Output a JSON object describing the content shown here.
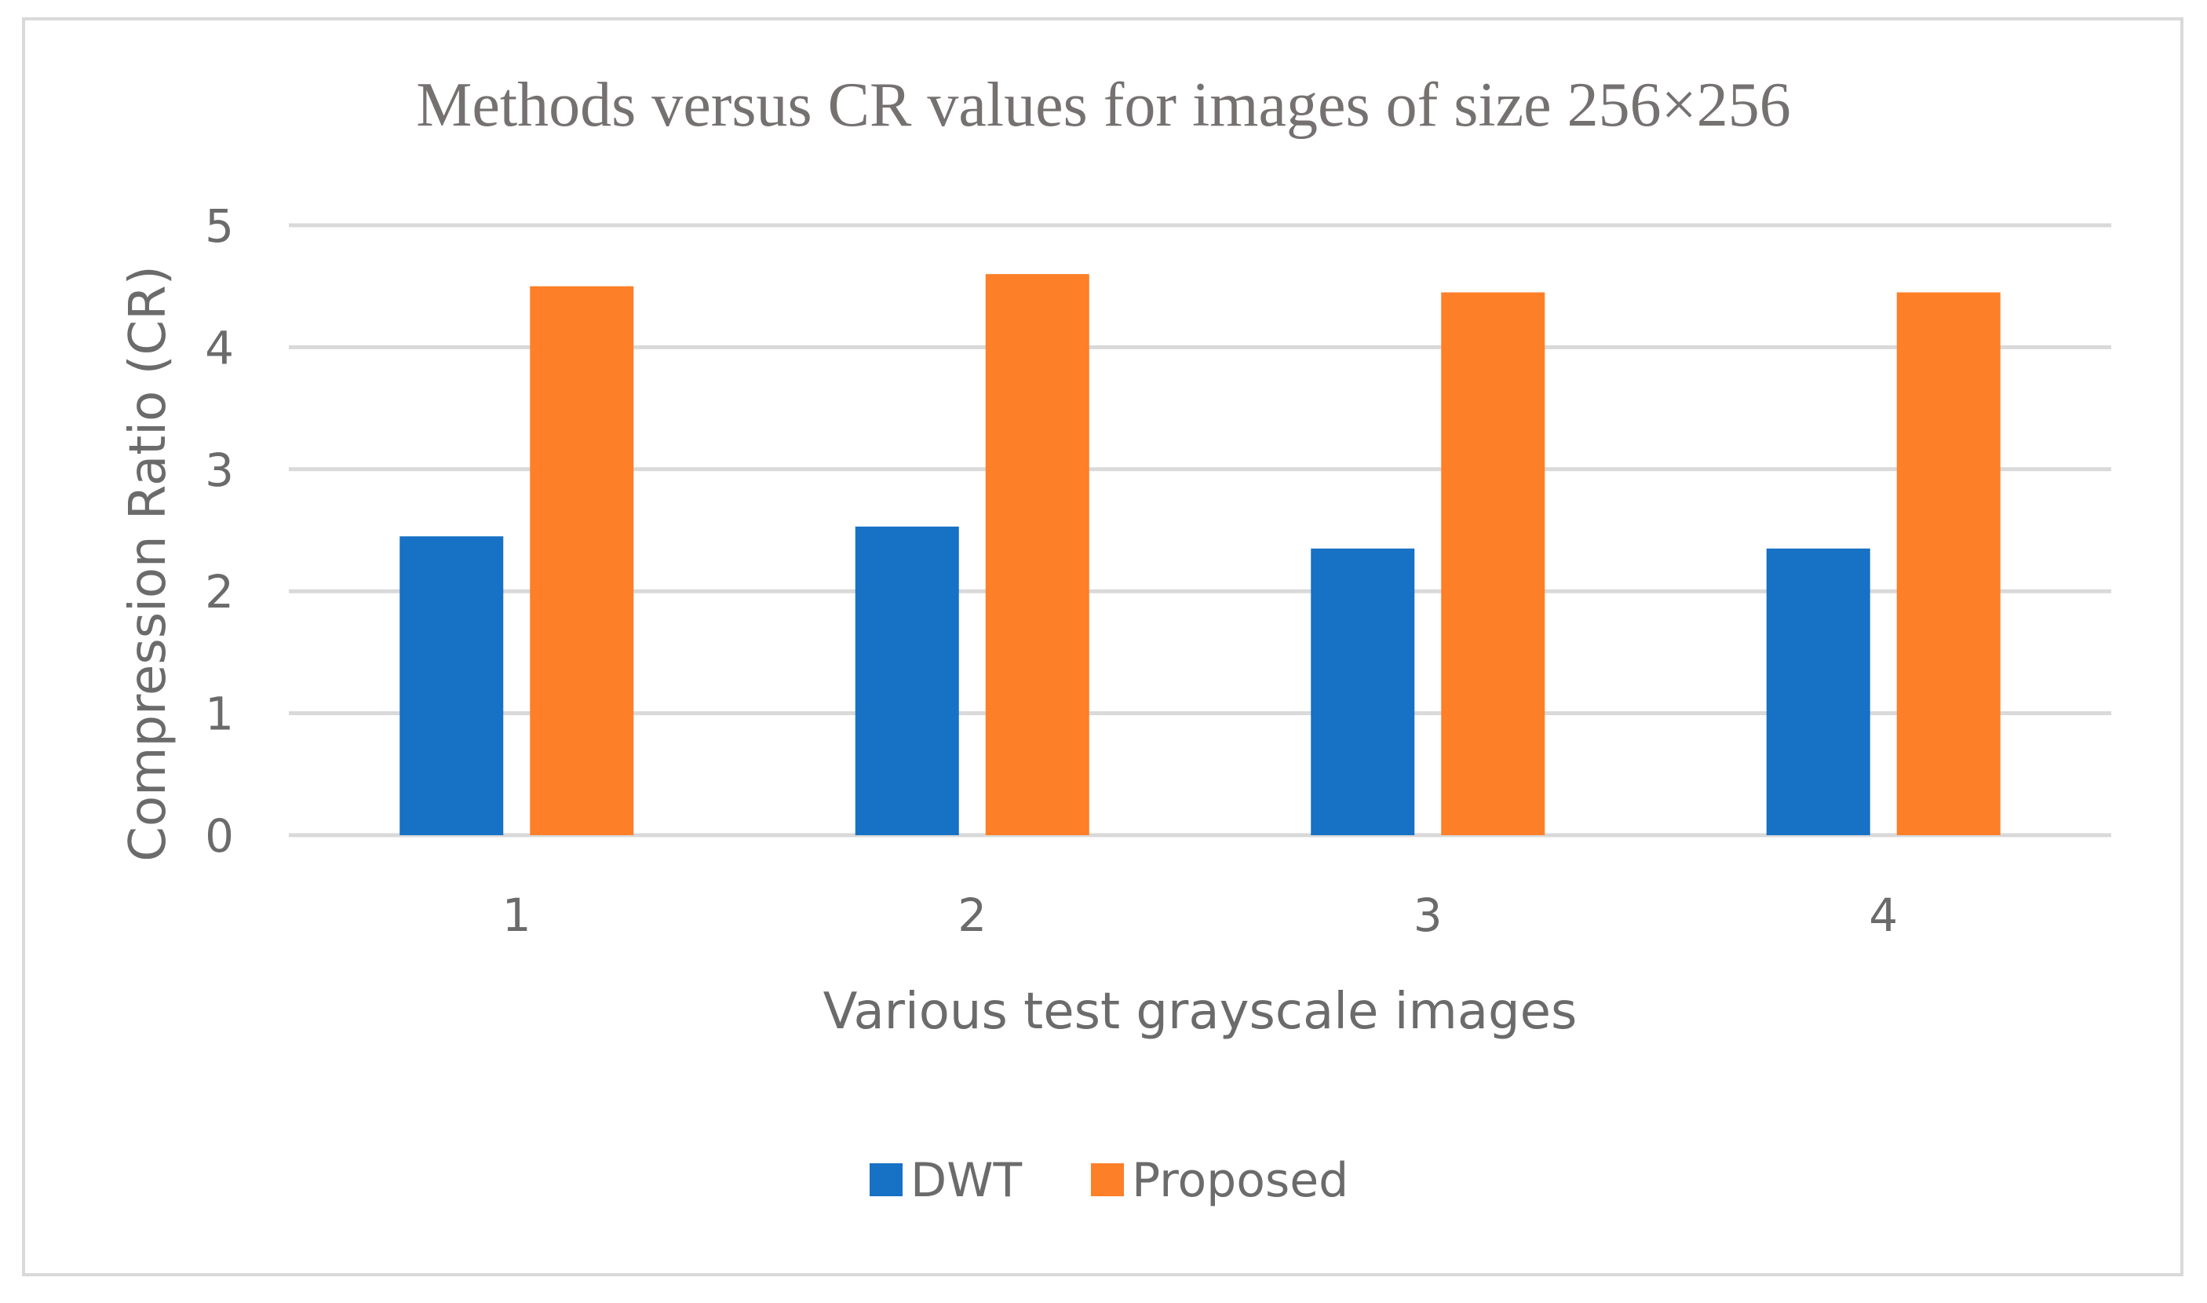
{
  "chart_data": {
    "type": "bar",
    "title": "Methods versus CR values for images of size 256×256",
    "xlabel": "Various test grayscale images",
    "ylabel": "Compression Ratio (CR)",
    "categories": [
      "1",
      "2",
      "3",
      "4"
    ],
    "series": [
      {
        "name": "DWT",
        "color": "#1771c5",
        "values": [
          2.45,
          2.53,
          2.35,
          2.35
        ]
      },
      {
        "name": "Proposed",
        "color": "#fd7f28",
        "values": [
          4.5,
          4.6,
          4.45,
          4.45
        ]
      }
    ],
    "ylim": [
      0,
      5
    ],
    "yticks": [
      "0",
      "1",
      "2",
      "3",
      "4",
      "5"
    ],
    "grid": true,
    "legend_position": "bottom"
  }
}
